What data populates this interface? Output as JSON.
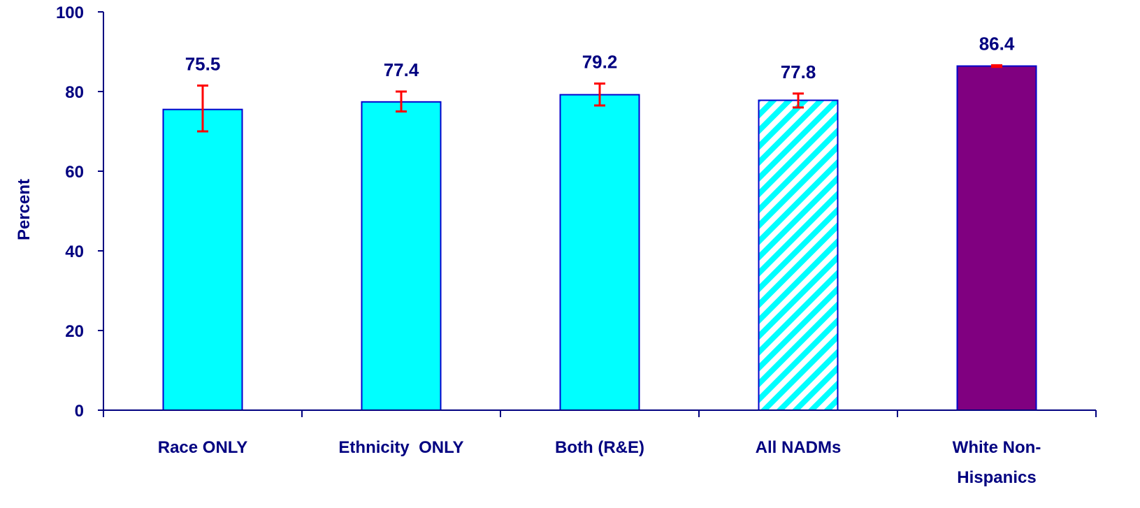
{
  "chart_data": {
    "type": "bar",
    "ylabel": "Percent",
    "ylim": [
      0,
      100
    ],
    "yticks": [
      "0",
      "20",
      "40",
      "60",
      "80",
      "100"
    ],
    "categories": [
      [
        "Race ONLY"
      ],
      [
        "Ethnicity  ONLY"
      ],
      [
        "Both (R&E)"
      ],
      [
        "All NADMs"
      ],
      [
        "White Non-",
        "Hispanics"
      ]
    ],
    "values": [
      75.5,
      77.4,
      79.2,
      77.8,
      86.4
    ],
    "value_labels": [
      "75.5",
      "77.4",
      "79.2",
      "77.8",
      "86.4"
    ],
    "error_low": [
      70.0,
      75.0,
      76.5,
      76.0,
      86.2
    ],
    "error_high": [
      81.5,
      80.0,
      82.0,
      79.5,
      86.6
    ],
    "bar_styles": [
      "solid",
      "solid",
      "solid",
      "hatched",
      "solid"
    ],
    "bar_colors": [
      "#00FFFF",
      "#00FFFF",
      "#00FFFF",
      "#00FFFF",
      "#800080"
    ],
    "error_color": "#FF0000",
    "axis_color": "#000080",
    "text_color": "#000080",
    "grid": false,
    "legend": "none"
  }
}
